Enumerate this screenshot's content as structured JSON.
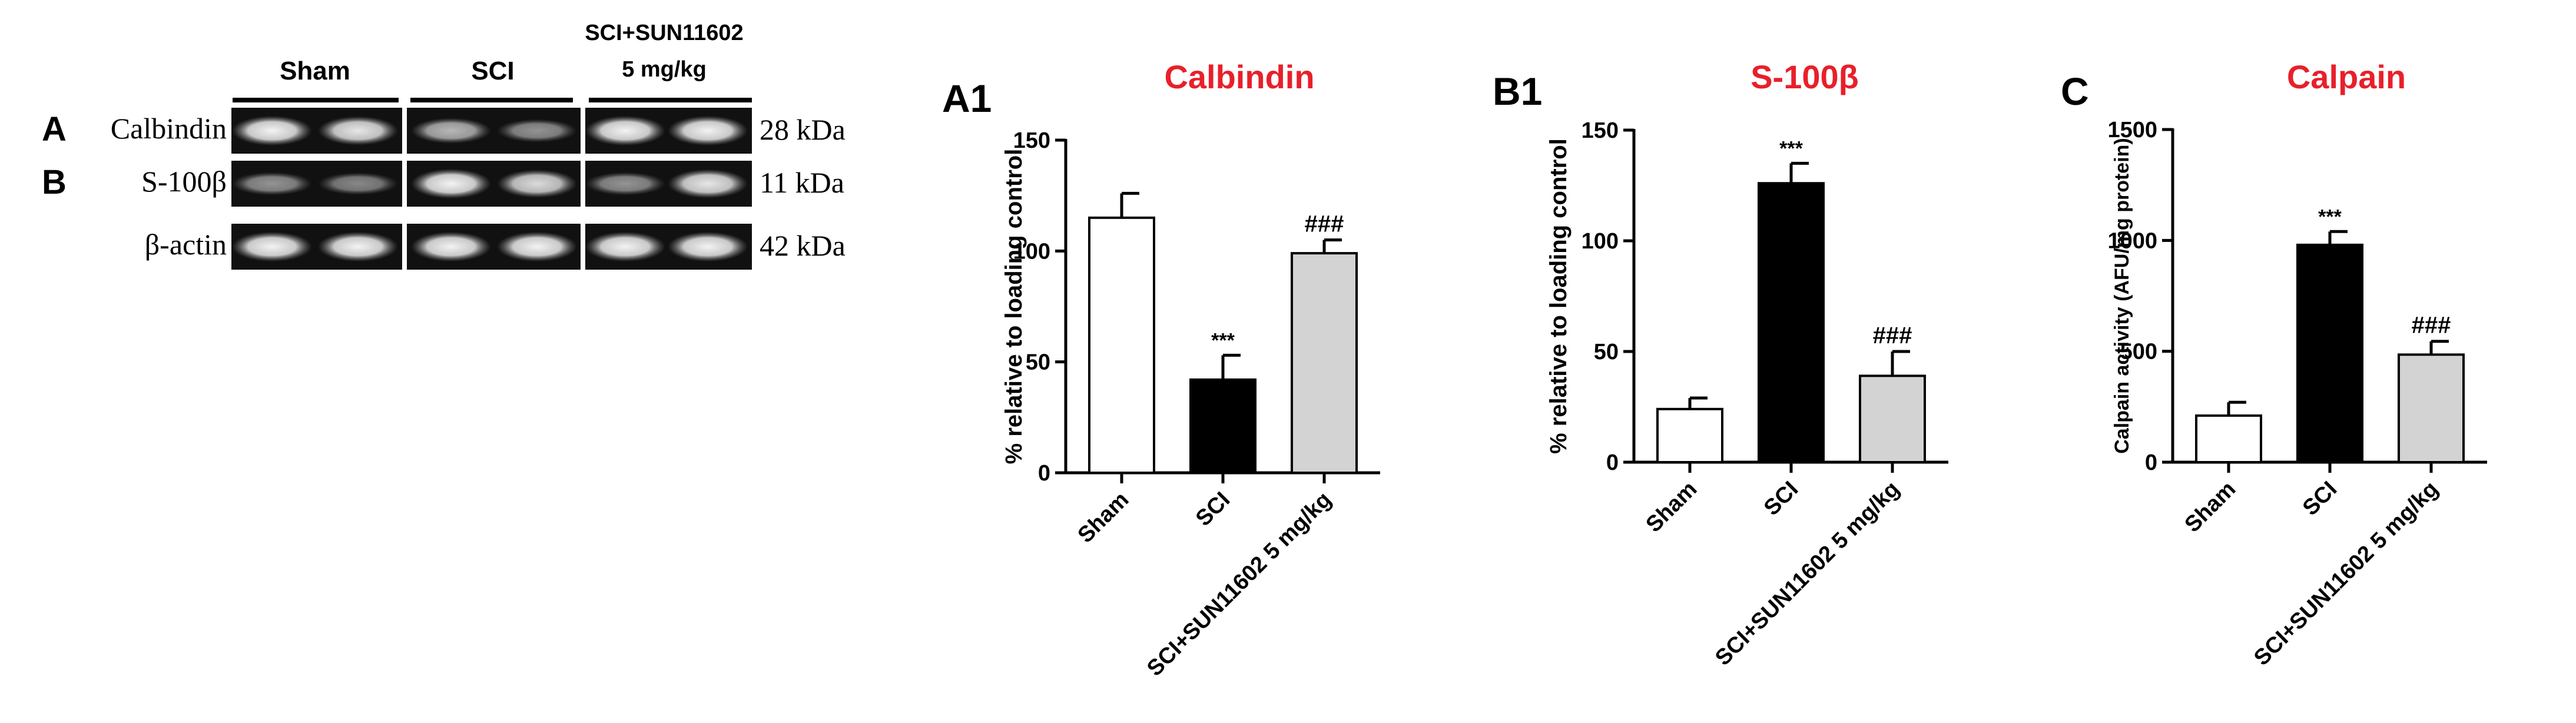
{
  "blot": {
    "groups": [
      "Sham",
      "SCI",
      "SCI+SUN11602"
    ],
    "group_dose": "5 mg/kg",
    "rows": [
      {
        "panel": "A",
        "label": "Calbindin",
        "kda": "28 kDa",
        "bands": [
          0.95,
          0.9,
          0.7,
          0.55,
          0.95,
          0.95
        ]
      },
      {
        "panel": "B",
        "label": "S-100β",
        "kda": "11 kDa",
        "bands": [
          0.55,
          0.5,
          0.95,
          0.85,
          0.55,
          0.9
        ]
      },
      {
        "panel": "",
        "label": "β-actin",
        "kda": "42 kDa",
        "bands": [
          0.95,
          0.95,
          0.95,
          0.95,
          0.95,
          0.95
        ]
      }
    ]
  },
  "chart_data": [
    {
      "type": "bar",
      "panel": "A1",
      "title": "Calbindin",
      "ylabel": "% relative to loading control",
      "categories": [
        "Sham",
        "SCI",
        "SCI+SUN11602 5 mg/kg"
      ],
      "values": [
        115,
        42,
        99
      ],
      "errors": [
        11,
        11,
        6
      ],
      "annotations": [
        "",
        "***",
        "###"
      ],
      "ylim": [
        0,
        150
      ],
      "yticks": [
        0,
        50,
        100,
        150
      ],
      "bar_colors": [
        "#ffffff",
        "#000000",
        "#d3d3d3"
      ]
    },
    {
      "type": "bar",
      "panel": "B1",
      "title": "S-100β",
      "ylabel": "% relative to loading control",
      "categories": [
        "Sham",
        "SCI",
        "SCI+SUN11602 5 mg/kg"
      ],
      "values": [
        24,
        126,
        39
      ],
      "errors": [
        5,
        9,
        11
      ],
      "annotations": [
        "",
        "***",
        "###"
      ],
      "ylim": [
        0,
        150
      ],
      "yticks": [
        0,
        50,
        100,
        150
      ],
      "bar_colors": [
        "#ffffff",
        "#000000",
        "#d3d3d3"
      ]
    },
    {
      "type": "bar",
      "panel": "C",
      "title": "Calpain",
      "ylabel": "Calpain activity (AFU/mg protein)",
      "categories": [
        "Sham",
        "SCI",
        "SCI+SUN11602 5 mg/kg"
      ],
      "values": [
        210,
        980,
        485
      ],
      "errors": [
        60,
        60,
        60
      ],
      "annotations": [
        "",
        "***",
        "###"
      ],
      "ylim": [
        0,
        1500
      ],
      "yticks": [
        0,
        500,
        1000,
        1500
      ],
      "bar_colors": [
        "#ffffff",
        "#000000",
        "#d3d3d3"
      ]
    }
  ],
  "colors": {
    "title": "#e8202a",
    "axis": "#000000"
  }
}
